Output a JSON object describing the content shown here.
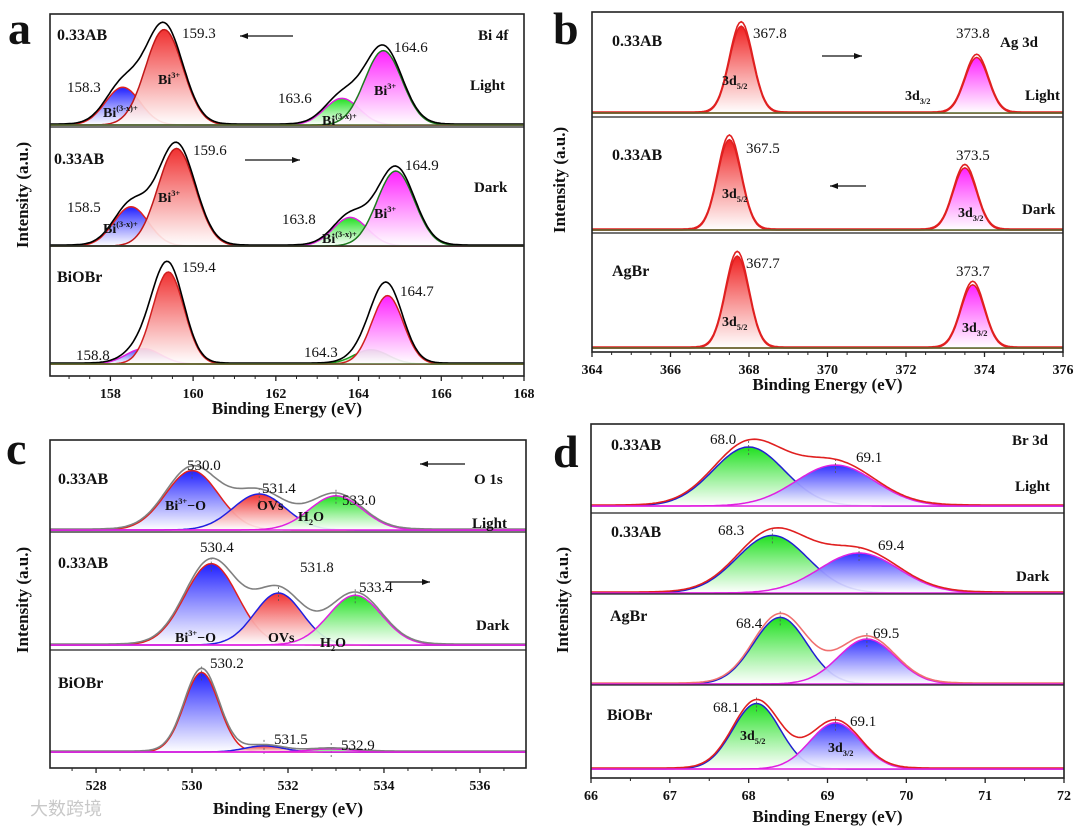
{
  "watermark": "大数跨境",
  "chart_data": [
    {
      "type": "area",
      "panel_letter": "a",
      "title": "Bi 4f",
      "xlabel": "Binding Energy (eV)",
      "ylabel": "Intensity (a.u.)",
      "xlim": [
        156.54,
        168
      ],
      "xticks": [
        158,
        160,
        162,
        164,
        166,
        168
      ],
      "subpanels": [
        {
          "sample": "0.33AB",
          "condition": "Light",
          "envelope": "#000000",
          "arrow": "left",
          "components": [
            {
              "center": 158.3,
              "sigma": 0.42,
              "amp": 0.34,
              "fill": "#1f1fff",
              "stroke": "#e02020"
            },
            {
              "center": 159.3,
              "sigma": 0.45,
              "amp": 0.86,
              "fill": "#f03030",
              "stroke": "#c01818"
            },
            {
              "center": 163.6,
              "sigma": 0.42,
              "amp": 0.24,
              "fill": "#20e020",
              "stroke": "#e020e0"
            },
            {
              "center": 164.6,
              "sigma": 0.45,
              "amp": 0.67,
              "fill": "#ff20ff",
              "stroke": "#1e7a1e"
            }
          ],
          "labels": [
            {
              "text": "159.3"
            },
            {
              "text": "158.3"
            },
            {
              "text": "Bi",
              "sup": "3+",
              "bold": true
            },
            {
              "text": "Bi",
              "sup": "(3-x)+",
              "bold": true
            },
            {
              "text": "163.6"
            },
            {
              "text": "Bi",
              "sup": "(3-x)+",
              "bold": true
            },
            {
              "text": "164.6"
            },
            {
              "text": "Bi",
              "sup": "3+",
              "bold": true
            }
          ]
        },
        {
          "sample": "0.33AB",
          "condition": "Dark",
          "envelope": "#000000",
          "arrow": "right",
          "components": [
            {
              "center": 158.5,
              "sigma": 0.42,
              "amp": 0.33,
              "fill": "#1f1fff",
              "stroke": "#e02020"
            },
            {
              "center": 159.6,
              "sigma": 0.45,
              "amp": 0.82,
              "fill": "#f03030",
              "stroke": "#c01818"
            },
            {
              "center": 163.8,
              "sigma": 0.42,
              "amp": 0.24,
              "fill": "#20e020",
              "stroke": "#e020e0"
            },
            {
              "center": 164.9,
              "sigma": 0.45,
              "amp": 0.63,
              "fill": "#ff20ff",
              "stroke": "#1e7a1e"
            }
          ],
          "labels": [
            {
              "text": "159.6"
            },
            {
              "text": "158.5"
            },
            {
              "text": "Bi",
              "sup": "3+",
              "bold": true
            },
            {
              "text": "Bi",
              "sup": "(3-x)+",
              "bold": true
            },
            {
              "text": "163.8"
            },
            {
              "text": "Bi",
              "sup": "(3-x)+",
              "bold": true
            },
            {
              "text": "164.9"
            },
            {
              "text": "Bi",
              "sup": "3+",
              "bold": true
            }
          ]
        },
        {
          "sample": "BiOBr",
          "condition": "",
          "envelope": "#000000",
          "arrow": "",
          "components": [
            {
              "center": 158.8,
              "sigma": 0.42,
              "amp": 0.13,
              "fill": "#4040ff",
              "stroke": "#e020e0"
            },
            {
              "center": 159.4,
              "sigma": 0.38,
              "amp": 0.78,
              "fill": "#f03030",
              "stroke": "#d02020"
            },
            {
              "center": 164.3,
              "sigma": 0.42,
              "amp": 0.12,
              "fill": "#20e020",
              "stroke": "#1e9a1e"
            },
            {
              "center": 164.7,
              "sigma": 0.38,
              "amp": 0.58,
              "fill": "#ff20ff",
              "stroke": "#d02020"
            }
          ],
          "labels": [
            {
              "text": "159.4"
            },
            {
              "text": "158.8"
            },
            {
              "text": "164.7"
            },
            {
              "text": "164.3"
            }
          ]
        }
      ]
    },
    {
      "type": "area",
      "panel_letter": "b",
      "title": "Ag 3d",
      "xlabel": "Binding Energy (eV)",
      "ylabel": "Intensity (a.u.)",
      "xlim": [
        364,
        376
      ],
      "xticks": [
        364,
        366,
        368,
        370,
        372,
        374,
        376
      ],
      "subpanels": [
        {
          "sample": "0.33AB",
          "condition": "Light",
          "envelope": "#e02020",
          "arrow": "right",
          "components": [
            {
              "center": 367.8,
              "sigma": 0.3,
              "amp": 0.86,
              "fill": "#f02020",
              "stroke": "#e02020"
            },
            {
              "center": 373.8,
              "sigma": 0.3,
              "amp": 0.55,
              "fill": "#ff20ff",
              "stroke": "#e02020"
            }
          ],
          "labels": [
            {
              "text": "367.8"
            },
            {
              "text": "3d",
              "sub": "5/2",
              "bold": true
            },
            {
              "text": "373.8"
            },
            {
              "text": "3d",
              "sub": "3/2",
              "bold": true
            }
          ]
        },
        {
          "sample": "0.33AB",
          "condition": "Dark",
          "envelope": "#e02020",
          "arrow": "left",
          "components": [
            {
              "center": 367.5,
              "sigma": 0.3,
              "amp": 0.8,
              "fill": "#f02020",
              "stroke": "#e02020"
            },
            {
              "center": 373.5,
              "sigma": 0.3,
              "amp": 0.55,
              "fill": "#ff20ff",
              "stroke": "#e02020"
            }
          ],
          "labels": [
            {
              "text": "367.5"
            },
            {
              "text": "3d",
              "sub": "5/2",
              "bold": true
            },
            {
              "text": "373.5"
            },
            {
              "text": "3d",
              "sub": "3/2",
              "bold": true
            }
          ]
        },
        {
          "sample": "AgBr",
          "condition": "",
          "envelope": "#e02020",
          "arrow": "",
          "components": [
            {
              "center": 367.7,
              "sigma": 0.3,
              "amp": 0.8,
              "fill": "#f02020",
              "stroke": "#e02020"
            },
            {
              "center": 373.7,
              "sigma": 0.3,
              "amp": 0.55,
              "fill": "#ff20ff",
              "stroke": "#e02020"
            }
          ],
          "labels": [
            {
              "text": "367.7"
            },
            {
              "text": "3d",
              "sub": "5/2",
              "bold": true
            },
            {
              "text": "373.7"
            },
            {
              "text": "3d",
              "sub": "3/2",
              "bold": true
            }
          ]
        }
      ]
    },
    {
      "type": "area",
      "panel_letter": "c",
      "title": "O 1s",
      "xlabel": "Binding Energy (eV)",
      "ylabel": "Intensity (a.u.)",
      "xlim": [
        527.04,
        536.96
      ],
      "xticks": [
        528,
        530,
        532,
        534,
        536
      ],
      "subpanels": [
        {
          "sample": "0.33AB",
          "condition": "Light",
          "envelope": "#808080",
          "arrow": "left",
          "components": [
            {
              "center": 530.0,
              "sigma": 0.55,
              "amp": 0.66,
              "fill": "#2020ff",
              "stroke": "#e02020"
            },
            {
              "center": 531.4,
              "sigma": 0.55,
              "amp": 0.4,
              "fill": "#f03030",
              "stroke": "#2020e0"
            },
            {
              "center": 533.0,
              "sigma": 0.55,
              "amp": 0.38,
              "fill": "#20e020",
              "stroke": "#e020e0"
            }
          ],
          "labels": [
            {
              "text": "530.0"
            },
            {
              "text": "531.4"
            },
            {
              "text": "533.0"
            },
            {
              "text": "Bi",
              "sup": "3+",
              "after": "−O",
              "bold": true
            },
            {
              "text": "OVs",
              "bold": true
            },
            {
              "text": "H",
              "sub": "2",
              "after": "O",
              "bold": true
            }
          ]
        },
        {
          "sample": "0.33AB",
          "condition": "Dark",
          "envelope": "#808080",
          "arrow": "right",
          "components": [
            {
              "center": 530.4,
              "sigma": 0.55,
              "amp": 0.72,
              "fill": "#2020ff",
              "stroke": "#e02020"
            },
            {
              "center": 531.8,
              "sigma": 0.5,
              "amp": 0.46,
              "fill": "#f03030",
              "stroke": "#2020e0"
            },
            {
              "center": 533.4,
              "sigma": 0.55,
              "amp": 0.44,
              "fill": "#20e020",
              "stroke": "#e020e0"
            }
          ],
          "labels": [
            {
              "text": "530.4"
            },
            {
              "text": "531.8"
            },
            {
              "text": "533.4"
            },
            {
              "text": "Bi",
              "sup": "3+",
              "after": "−O",
              "bold": true
            },
            {
              "text": "OVs",
              "bold": true
            },
            {
              "text": "H",
              "sub": "2",
              "after": "O",
              "bold": true
            }
          ]
        },
        {
          "sample": "BiOBr",
          "condition": "",
          "envelope": "#808080",
          "arrow": "",
          "components": [
            {
              "center": 530.2,
              "sigma": 0.36,
              "amp": 0.78,
              "fill": "#2020ff",
              "stroke": "#e02020"
            },
            {
              "center": 531.5,
              "sigma": 0.4,
              "amp": 0.06,
              "fill": "#f03030",
              "stroke": "#2020e0"
            },
            {
              "center": 532.9,
              "sigma": 0.45,
              "amp": 0.03,
              "fill": "#20e020",
              "stroke": "#e020e0"
            }
          ],
          "labels": [
            {
              "text": "530.2"
            },
            {
              "text": "531.5"
            },
            {
              "text": "532.9"
            }
          ]
        }
      ]
    },
    {
      "type": "area",
      "panel_letter": "d",
      "title": "Br 3d",
      "xlabel": "Binding Energy (eV)",
      "ylabel": "Intensity (a.u.)",
      "xlim": [
        66,
        72
      ],
      "xticks": [
        66,
        67,
        68,
        69,
        70,
        71,
        72
      ],
      "subpanels": [
        {
          "sample": "0.33AB",
          "condition": "Light",
          "envelope": "#e02020",
          "arrow": "",
          "components": [
            {
              "center": 68.0,
              "sigma": 0.45,
              "amp": 0.72,
              "fill": "#20e020",
              "stroke": "#2020d0"
            },
            {
              "center": 69.1,
              "sigma": 0.5,
              "amp": 0.5,
              "fill": "#3030ff",
              "stroke": "#e020e0"
            }
          ],
          "labels": [
            {
              "text": "68.0"
            },
            {
              "text": "69.1"
            }
          ]
        },
        {
          "sample": "0.33AB",
          "condition": "Dark",
          "envelope": "#e02020",
          "arrow": "",
          "components": [
            {
              "center": 68.3,
              "sigma": 0.45,
              "amp": 0.72,
              "fill": "#20e020",
              "stroke": "#2020d0"
            },
            {
              "center": 69.4,
              "sigma": 0.5,
              "amp": 0.5,
              "fill": "#3030ff",
              "stroke": "#e020e0"
            }
          ],
          "labels": [
            {
              "text": "68.3"
            },
            {
              "text": "69.4"
            }
          ]
        },
        {
          "sample": "AgBr",
          "condition": "",
          "envelope": "#f07070",
          "arrow": "",
          "components": [
            {
              "center": 68.4,
              "sigma": 0.34,
              "amp": 0.74,
              "fill": "#20e020",
              "stroke": "#2020d0"
            },
            {
              "center": 69.5,
              "sigma": 0.36,
              "amp": 0.5,
              "fill": "#3030ff",
              "stroke": "#e020e0"
            }
          ],
          "labels": [
            {
              "text": "68.4"
            },
            {
              "text": "69.5"
            }
          ]
        },
        {
          "sample": "BiOBr",
          "condition": "",
          "envelope": "#e02020",
          "arrow": "",
          "components": [
            {
              "center": 68.1,
              "sigma": 0.3,
              "amp": 0.78,
              "fill": "#20e020",
              "stroke": "#2020d0"
            },
            {
              "center": 69.1,
              "sigma": 0.32,
              "amp": 0.55,
              "fill": "#3030ff",
              "stroke": "#e020e0"
            }
          ],
          "labels": [
            {
              "text": "68.1"
            },
            {
              "text": "69.1"
            },
            {
              "text": "3d",
              "sub": "5/2",
              "bold": true
            },
            {
              "text": "3d",
              "sub": "3/2",
              "bold": true
            }
          ]
        }
      ]
    }
  ]
}
